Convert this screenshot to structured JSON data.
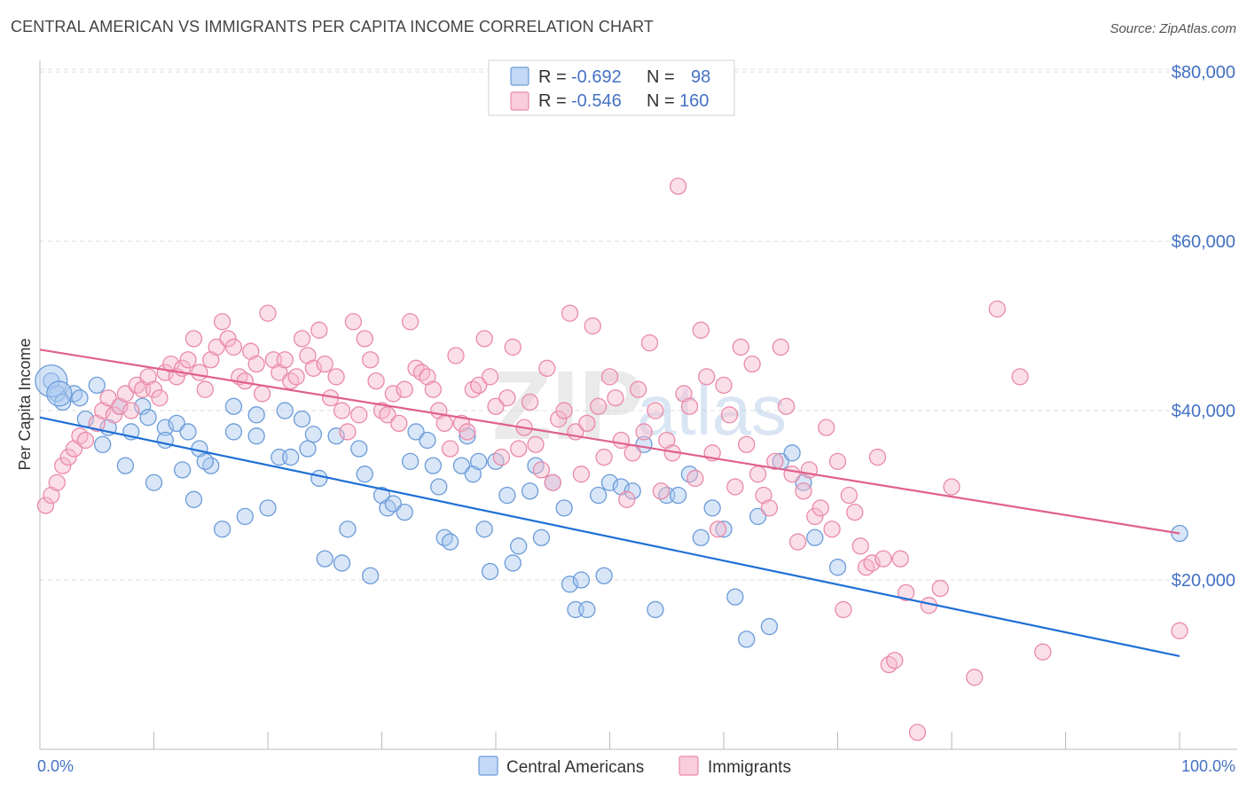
{
  "title": "CENTRAL AMERICAN VS IMMIGRANTS PER CAPITA INCOME CORRELATION CHART",
  "source": "Source: ZipAtlas.com",
  "watermark": {
    "part1": "ZIP",
    "part2": "atlas"
  },
  "legend_top": [
    {
      "r_label": "R =",
      "r_value": "-0.692",
      "n_label": "N =",
      "n_value": "98"
    },
    {
      "r_label": "R =",
      "r_value": "-0.546",
      "n_label": "N =",
      "n_value": "160"
    }
  ],
  "legend_bottom": [
    "Central Americans",
    "Immigrants"
  ],
  "colors": {
    "blue_fill": "#a8c8f0",
    "blue_stroke": "#6b9bd8",
    "blue_line": "#1f6fd6",
    "pink_fill": "#f7b8cc",
    "pink_stroke": "#e98aa8",
    "pink_line": "#e0608c",
    "label_blue": "#4472c4"
  },
  "chart_data": {
    "type": "scatter",
    "title": "CENTRAL AMERICAN VS IMMIGRANTS PER CAPITA INCOME CORRELATION CHART",
    "xlabel": "",
    "ylabel": "Per Capita Income",
    "xlim": [
      0,
      100
    ],
    "ylim": [
      0,
      82000
    ],
    "x_tick_labels": [
      "0.0%",
      "100.0%"
    ],
    "y_ticks": [
      20000,
      40000,
      60000,
      80000
    ],
    "y_tick_labels": [
      "$20,000",
      "$40,000",
      "$60,000",
      "$80,000"
    ],
    "grid": true,
    "series": [
      {
        "name": "Central Americans",
        "color": "blue",
        "trend": {
          "x": [
            0,
            100
          ],
          "y": [
            39200,
            11000
          ]
        },
        "points": [
          [
            1,
            43500
          ],
          [
            1.5,
            42000
          ],
          [
            2,
            41000
          ],
          [
            3,
            42000
          ],
          [
            4,
            39000
          ],
          [
            3.5,
            41500
          ],
          [
            5,
            43000
          ],
          [
            6,
            38000
          ],
          [
            5.5,
            36000
          ],
          [
            7,
            40500
          ],
          [
            7.5,
            33500
          ],
          [
            8,
            37500
          ],
          [
            9,
            40500
          ],
          [
            9.5,
            39200
          ],
          [
            10,
            31500
          ],
          [
            11,
            38000
          ],
          [
            11,
            36500
          ],
          [
            12,
            38500
          ],
          [
            13,
            37500
          ],
          [
            12.5,
            33000
          ],
          [
            14,
            35500
          ],
          [
            15,
            33500
          ],
          [
            13.5,
            29500
          ],
          [
            14.5,
            34000
          ],
          [
            16,
            26000
          ],
          [
            17,
            40500
          ],
          [
            17,
            37500
          ],
          [
            18,
            27500
          ],
          [
            19,
            37000
          ],
          [
            19,
            39500
          ],
          [
            20,
            28500
          ],
          [
            21,
            34500
          ],
          [
            21.5,
            40000
          ],
          [
            22,
            34500
          ],
          [
            23,
            39000
          ],
          [
            23.5,
            35500
          ],
          [
            24,
            37200
          ],
          [
            24.5,
            32000
          ],
          [
            25,
            22500
          ],
          [
            26,
            37000
          ],
          [
            26.5,
            22000
          ],
          [
            27,
            26000
          ],
          [
            28,
            35500
          ],
          [
            28.5,
            32500
          ],
          [
            29,
            20500
          ],
          [
            30,
            30000
          ],
          [
            30.5,
            28500
          ],
          [
            31,
            29000
          ],
          [
            32,
            28000
          ],
          [
            32.5,
            34000
          ],
          [
            33,
            37500
          ],
          [
            34,
            36500
          ],
          [
            34.5,
            33500
          ],
          [
            35,
            31000
          ],
          [
            35.5,
            25000
          ],
          [
            36,
            24500
          ],
          [
            37,
            33500
          ],
          [
            37.5,
            37000
          ],
          [
            38,
            32500
          ],
          [
            38.5,
            34000
          ],
          [
            39,
            26000
          ],
          [
            39.5,
            21000
          ],
          [
            40,
            34000
          ],
          [
            41,
            30000
          ],
          [
            41.5,
            22000
          ],
          [
            42,
            24000
          ],
          [
            43,
            30500
          ],
          [
            43.5,
            33500
          ],
          [
            44,
            25000
          ],
          [
            45,
            31500
          ],
          [
            46,
            28500
          ],
          [
            46.5,
            19500
          ],
          [
            47,
            16500
          ],
          [
            47.5,
            20000
          ],
          [
            48,
            16500
          ],
          [
            49,
            30000
          ],
          [
            49.5,
            20500
          ],
          [
            50,
            31500
          ],
          [
            51,
            31000
          ],
          [
            52,
            30500
          ],
          [
            53,
            36000
          ],
          [
            54,
            16500
          ],
          [
            55,
            30000
          ],
          [
            56,
            30000
          ],
          [
            57,
            32500
          ],
          [
            58,
            25000
          ],
          [
            59,
            28500
          ],
          [
            60,
            26000
          ],
          [
            61,
            18000
          ],
          [
            62,
            13000
          ],
          [
            63,
            27500
          ],
          [
            64,
            14500
          ],
          [
            65,
            34000
          ],
          [
            66,
            35000
          ],
          [
            67,
            31500
          ],
          [
            68,
            25000
          ],
          [
            70,
            21500
          ],
          [
            100,
            25500
          ]
        ]
      },
      {
        "name": "Immigrants",
        "color": "pink",
        "trend": {
          "x": [
            0,
            100
          ],
          "y": [
            47200,
            25500
          ]
        },
        "points": [
          [
            0.5,
            28800
          ],
          [
            1,
            30000
          ],
          [
            1.5,
            31500
          ],
          [
            2,
            33500
          ],
          [
            2.5,
            34500
          ],
          [
            3,
            35500
          ],
          [
            3.5,
            37000
          ],
          [
            4,
            36500
          ],
          [
            5,
            38500
          ],
          [
            5.5,
            40000
          ],
          [
            6,
            41500
          ],
          [
            6.5,
            39500
          ],
          [
            7,
            40500
          ],
          [
            7.5,
            42000
          ],
          [
            8,
            40000
          ],
          [
            8.5,
            43000
          ],
          [
            9,
            42500
          ],
          [
            9.5,
            44000
          ],
          [
            10,
            42500
          ],
          [
            10.5,
            41500
          ],
          [
            11,
            44500
          ],
          [
            11.5,
            45500
          ],
          [
            12,
            44000
          ],
          [
            12.5,
            45000
          ],
          [
            13,
            46000
          ],
          [
            13.5,
            48500
          ],
          [
            14,
            44500
          ],
          [
            14.5,
            42500
          ],
          [
            15,
            46000
          ],
          [
            15.5,
            47500
          ],
          [
            16,
            50500
          ],
          [
            16.5,
            48500
          ],
          [
            17,
            47500
          ],
          [
            17.5,
            44000
          ],
          [
            18,
            43500
          ],
          [
            18.5,
            47000
          ],
          [
            19,
            45500
          ],
          [
            19.5,
            42000
          ],
          [
            20,
            51500
          ],
          [
            20.5,
            46000
          ],
          [
            21,
            44500
          ],
          [
            21.5,
            46000
          ],
          [
            22,
            43500
          ],
          [
            22.5,
            44000
          ],
          [
            23,
            48500
          ],
          [
            23.5,
            46500
          ],
          [
            24,
            45000
          ],
          [
            24.5,
            49500
          ],
          [
            25,
            45500
          ],
          [
            25.5,
            41500
          ],
          [
            26,
            44000
          ],
          [
            26.5,
            40000
          ],
          [
            27,
            37500
          ],
          [
            27.5,
            50500
          ],
          [
            28,
            39500
          ],
          [
            28.5,
            48500
          ],
          [
            29,
            46000
          ],
          [
            29.5,
            43500
          ],
          [
            30,
            40000
          ],
          [
            30.5,
            39500
          ],
          [
            31,
            42000
          ],
          [
            31.5,
            38500
          ],
          [
            32,
            42500
          ],
          [
            32.5,
            50500
          ],
          [
            33,
            45000
          ],
          [
            33.5,
            44500
          ],
          [
            34,
            44000
          ],
          [
            34.5,
            42500
          ],
          [
            35,
            40000
          ],
          [
            35.5,
            38500
          ],
          [
            36,
            35500
          ],
          [
            36.5,
            46500
          ],
          [
            37,
            38500
          ],
          [
            37.5,
            37500
          ],
          [
            38,
            42500
          ],
          [
            38.5,
            43000
          ],
          [
            39,
            48500
          ],
          [
            39.5,
            44000
          ],
          [
            40,
            40500
          ],
          [
            40.5,
            34500
          ],
          [
            41,
            41500
          ],
          [
            41.5,
            47500
          ],
          [
            42,
            35500
          ],
          [
            42.5,
            38000
          ],
          [
            43,
            41000
          ],
          [
            43.5,
            36000
          ],
          [
            44,
            33000
          ],
          [
            44.5,
            45000
          ],
          [
            45,
            31500
          ],
          [
            45.5,
            39000
          ],
          [
            46,
            40000
          ],
          [
            46.5,
            51500
          ],
          [
            47,
            37500
          ],
          [
            47.5,
            32500
          ],
          [
            48,
            38500
          ],
          [
            48.5,
            50000
          ],
          [
            49,
            40500
          ],
          [
            49.5,
            34500
          ],
          [
            50,
            44000
          ],
          [
            50.5,
            41500
          ],
          [
            51,
            36500
          ],
          [
            51.5,
            29500
          ],
          [
            52,
            35000
          ],
          [
            52.5,
            42500
          ],
          [
            53,
            37500
          ],
          [
            53.5,
            48000
          ],
          [
            54,
            40000
          ],
          [
            54.5,
            30500
          ],
          [
            55,
            36500
          ],
          [
            55.5,
            35000
          ],
          [
            56,
            66500
          ],
          [
            56.5,
            42000
          ],
          [
            57,
            40500
          ],
          [
            57.5,
            32000
          ],
          [
            58,
            49500
          ],
          [
            58.5,
            44000
          ],
          [
            59,
            35000
          ],
          [
            59.5,
            26000
          ],
          [
            60,
            43000
          ],
          [
            60.5,
            39500
          ],
          [
            61,
            31000
          ],
          [
            61.5,
            47500
          ],
          [
            62,
            36000
          ],
          [
            62.5,
            45500
          ],
          [
            63,
            32500
          ],
          [
            63.5,
            30000
          ],
          [
            64,
            28500
          ],
          [
            64.5,
            34000
          ],
          [
            65,
            47500
          ],
          [
            65.5,
            40500
          ],
          [
            66,
            32500
          ],
          [
            66.5,
            24500
          ],
          [
            67,
            30500
          ],
          [
            67.5,
            33000
          ],
          [
            68,
            27500
          ],
          [
            68.5,
            28500
          ],
          [
            69,
            38000
          ],
          [
            69.5,
            26000
          ],
          [
            70,
            34000
          ],
          [
            70.5,
            16500
          ],
          [
            71,
            30000
          ],
          [
            71.5,
            28000
          ],
          [
            72,
            24000
          ],
          [
            72.5,
            21500
          ],
          [
            73,
            22000
          ],
          [
            73.5,
            34500
          ],
          [
            74,
            22500
          ],
          [
            74.5,
            10000
          ],
          [
            75,
            10500
          ],
          [
            75.5,
            22500
          ],
          [
            76,
            18500
          ],
          [
            77,
            2000
          ],
          [
            78,
            17000
          ],
          [
            79,
            19000
          ],
          [
            80,
            31000
          ],
          [
            82,
            8500
          ],
          [
            84,
            52000
          ],
          [
            86,
            44000
          ],
          [
            88,
            11500
          ],
          [
            100,
            14000
          ]
        ]
      }
    ]
  }
}
